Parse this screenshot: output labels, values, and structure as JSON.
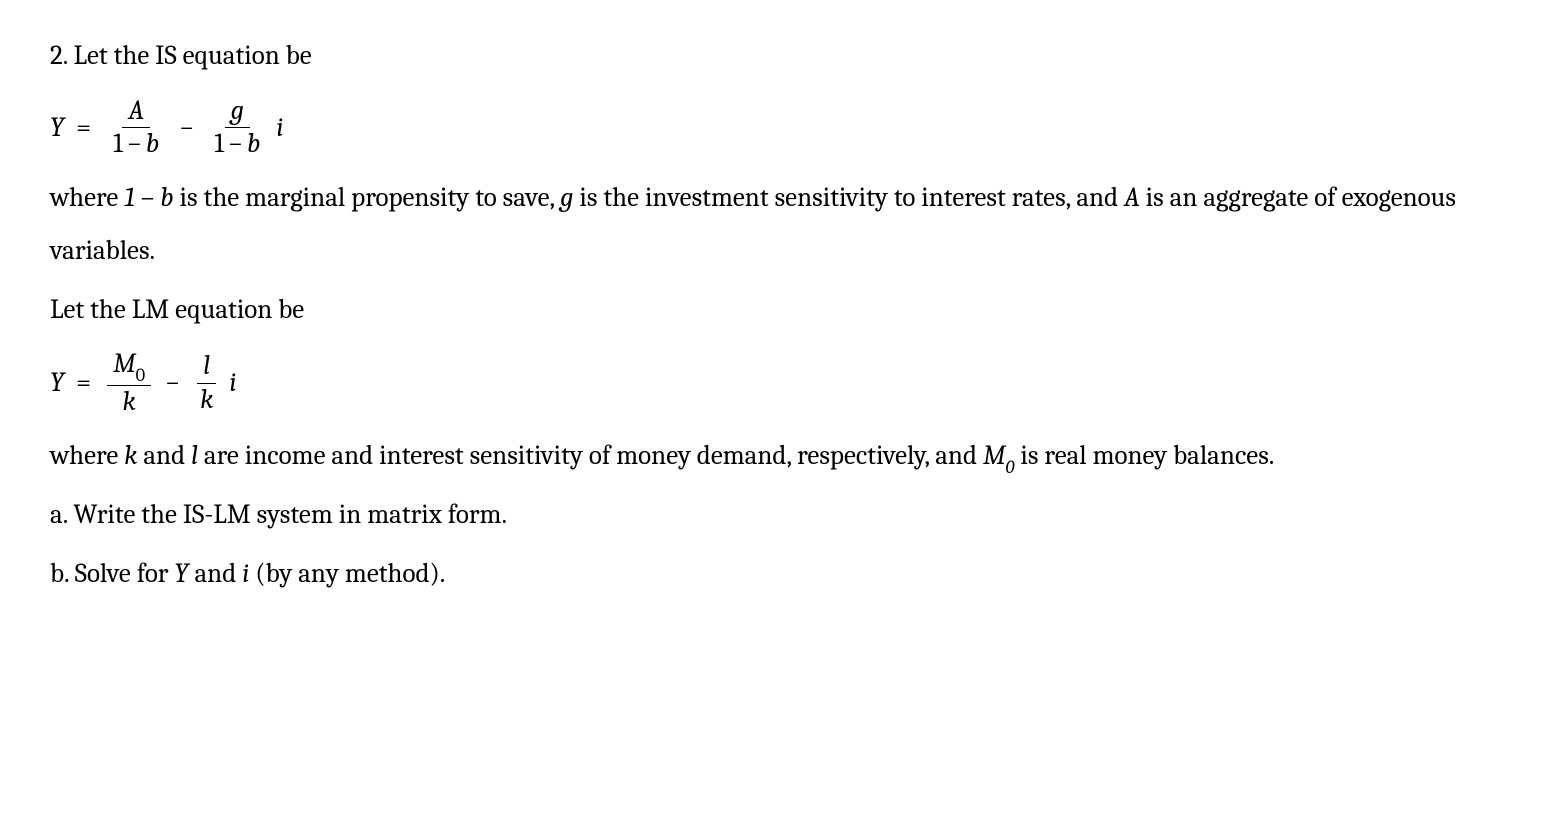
{
  "page": {
    "background_color": "#ffffff",
    "text_color": "#000000",
    "font_family": "Cambria, Georgia, 'Times New Roman', serif",
    "font_size_pt": 20,
    "line_height": 1.95
  },
  "problem": {
    "number": "2.",
    "intro_text": "Let the IS equation be",
    "is_equation": {
      "lhs": "Y",
      "eq": "=",
      "term1": {
        "numerator": "A",
        "denominator_parts": [
          "1",
          "−",
          "b"
        ]
      },
      "minus": "−",
      "term2": {
        "numerator": "g",
        "denominator_parts": [
          "1",
          "−",
          "b"
        ]
      },
      "trailing_var": "i"
    },
    "is_explain_parts": {
      "lead": "where ",
      "one_minus_b_1": "1",
      "one_minus_b_dash": " – ",
      "one_minus_b_b": "b",
      "mid1": " is the marginal propensity to save, ",
      "g": "g",
      "mid2": " is the investment sensitivity to interest rates, and ",
      "A": "A",
      "tail": " is an aggregate of exogenous variables."
    },
    "lm_intro": "Let the LM equation be",
    "lm_equation": {
      "lhs": "Y",
      "eq": "=",
      "term1": {
        "numerator_M": "M",
        "numerator_sub": "0",
        "denominator": "k"
      },
      "minus": "−",
      "term2": {
        "numerator": "l",
        "denominator": "k"
      },
      "trailing_var": "i"
    },
    "lm_explain_parts": {
      "lead": "where ",
      "k": "k",
      "and": " and ",
      "l": "l",
      "mid": " are income and interest sensitivity of money demand, respectively, and ",
      "M": "M",
      "M_sub": "0",
      "tail": " is real money balances."
    },
    "part_a": "a. Write the IS-LM system in matrix form.",
    "part_b_lead": "b. Solve for ",
    "part_b_Y": "Y",
    "part_b_and": " and ",
    "part_b_i": "i",
    "part_b_tail": " (by any method)."
  }
}
